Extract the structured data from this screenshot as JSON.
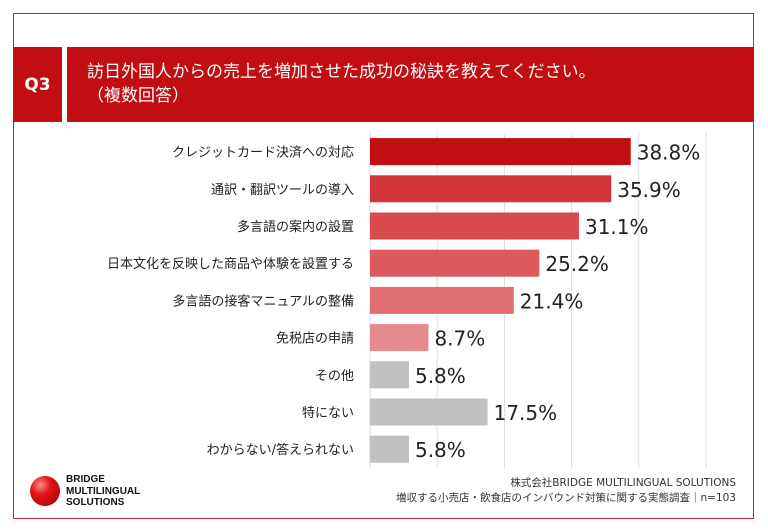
{
  "question": {
    "tag": "Q3",
    "text": "訪日外国人からの売上を増加させた成功の秘訣を教えてください。\n（複数回答）"
  },
  "colors": {
    "accent": "#c00e13",
    "bars": [
      "#c00e13",
      "#d2353a",
      "#d84b4f",
      "#dc5a5e",
      "#e06e72",
      "#e58a8d",
      "#c0c0c0",
      "#c0c0c0",
      "#c0c0c0"
    ],
    "grid": "#dddddd"
  },
  "chart_data": {
    "type": "bar",
    "orientation": "horizontal",
    "categories": [
      "クレジットカード決済への対応",
      "通訳・翻訳ツールの導入",
      "多言語の案内の設置",
      "日本文化を反映した商品や体験を設置する",
      "多言語の接客マニュアルの整備",
      "免税店の申請",
      "その他",
      "特にない",
      "わからない/答えられない"
    ],
    "values": [
      38.8,
      35.9,
      31.1,
      25.2,
      21.4,
      8.7,
      5.8,
      17.5,
      5.8
    ],
    "value_labels": [
      "38.8%",
      "35.9%",
      "31.1%",
      "25.2%",
      "21.4%",
      "8.7%",
      "5.8%",
      "17.5%",
      "5.8%"
    ],
    "xlim": [
      0,
      50
    ],
    "grid": true
  },
  "logo": {
    "line1": "BRIDGE",
    "line2": "MULTILINGUAL",
    "line3": "SOLUTIONS"
  },
  "source": {
    "line1": "株式会社BRIDGE MULTILINGUAL SOLUTIONS",
    "line2": "増収する小売店・飲食店のインバウンド対策に関する実態調査｜n=103"
  }
}
